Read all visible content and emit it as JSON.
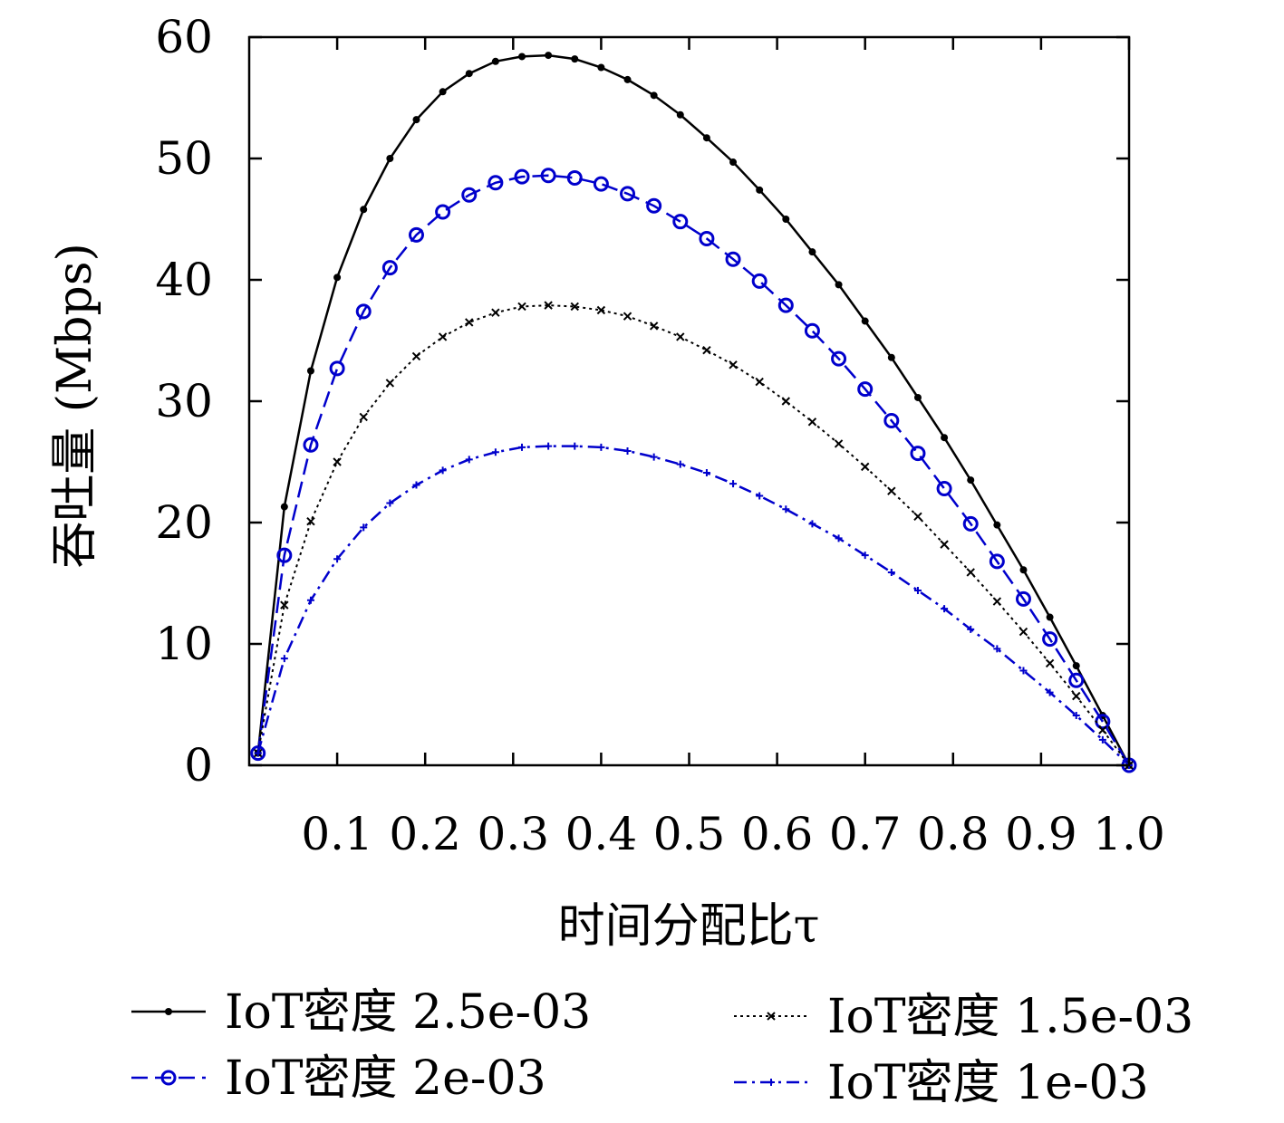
{
  "chart_data": {
    "type": "line",
    "xlabel": "时间分配比τ",
    "ylabel": "吞吐量 (Mbps)",
    "xlim": [
      0,
      1.0
    ],
    "ylim": [
      0,
      60
    ],
    "xticks": [
      "0.1",
      "0.2",
      "0.3",
      "0.4",
      "0.5",
      "0.6",
      "0.7",
      "0.8",
      "0.9",
      "1.0"
    ],
    "yticks": [
      "0",
      "10",
      "20",
      "30",
      "40",
      "50",
      "60"
    ],
    "grid": false,
    "legend_position": "bottom",
    "series": [
      {
        "name": "IoT密度 2.5e-03",
        "color": "#000000",
        "line_style": "solid",
        "marker": "dot",
        "x": [
          0.01,
          0.04,
          0.07,
          0.1,
          0.13,
          0.16,
          0.19,
          0.22,
          0.25,
          0.28,
          0.31,
          0.34,
          0.37,
          0.4,
          0.43,
          0.46,
          0.49,
          0.52,
          0.55,
          0.58,
          0.61,
          0.64,
          0.67,
          0.7,
          0.73,
          0.76,
          0.79,
          0.82,
          0.85,
          0.88,
          0.91,
          0.94,
          0.97,
          1.0
        ],
        "values": [
          1.0,
          21.3,
          32.5,
          40.2,
          45.8,
          50.0,
          53.2,
          55.5,
          57.0,
          58.0,
          58.4,
          58.5,
          58.2,
          57.5,
          56.5,
          55.2,
          53.6,
          51.7,
          49.7,
          47.4,
          45.0,
          42.3,
          39.6,
          36.6,
          33.6,
          30.3,
          27.0,
          23.5,
          19.8,
          16.1,
          12.2,
          8.2,
          4.1,
          0.0
        ]
      },
      {
        "name": "IoT密度 2e-03",
        "color": "#0000cc",
        "line_style": "dashed",
        "marker": "circle",
        "x": [
          0.01,
          0.04,
          0.07,
          0.1,
          0.13,
          0.16,
          0.19,
          0.22,
          0.25,
          0.28,
          0.31,
          0.34,
          0.37,
          0.4,
          0.43,
          0.46,
          0.49,
          0.52,
          0.55,
          0.58,
          0.61,
          0.64,
          0.67,
          0.7,
          0.73,
          0.76,
          0.79,
          0.82,
          0.85,
          0.88,
          0.91,
          0.94,
          0.97,
          1.0
        ],
        "values": [
          1.0,
          17.3,
          26.4,
          32.7,
          37.4,
          41.0,
          43.7,
          45.6,
          47.0,
          48.0,
          48.5,
          48.6,
          48.4,
          47.9,
          47.1,
          46.1,
          44.8,
          43.4,
          41.7,
          39.9,
          37.9,
          35.8,
          33.5,
          31.0,
          28.4,
          25.7,
          22.8,
          19.9,
          16.8,
          13.7,
          10.4,
          7.0,
          3.6,
          0.0
        ]
      },
      {
        "name": "IoT密度 1.5e-03",
        "color": "#000000",
        "line_style": "dotted",
        "marker": "cross",
        "x": [
          0.01,
          0.04,
          0.07,
          0.1,
          0.13,
          0.16,
          0.19,
          0.22,
          0.25,
          0.28,
          0.31,
          0.34,
          0.37,
          0.4,
          0.43,
          0.46,
          0.49,
          0.52,
          0.55,
          0.58,
          0.61,
          0.64,
          0.67,
          0.7,
          0.73,
          0.76,
          0.79,
          0.82,
          0.85,
          0.88,
          0.91,
          0.94,
          0.97,
          1.0
        ],
        "values": [
          1.0,
          13.2,
          20.1,
          25.0,
          28.7,
          31.5,
          33.7,
          35.3,
          36.5,
          37.3,
          37.8,
          37.9,
          37.8,
          37.5,
          37.0,
          36.2,
          35.3,
          34.2,
          33.0,
          31.6,
          30.0,
          28.3,
          26.5,
          24.6,
          22.6,
          20.5,
          18.2,
          15.9,
          13.5,
          11.0,
          8.4,
          5.7,
          2.9,
          0.0
        ]
      },
      {
        "name": "IoT密度 1e-03",
        "color": "#0000cc",
        "line_style": "dashdot",
        "marker": "plus",
        "x": [
          0.01,
          0.04,
          0.07,
          0.1,
          0.13,
          0.16,
          0.19,
          0.22,
          0.25,
          0.28,
          0.31,
          0.34,
          0.37,
          0.4,
          0.43,
          0.46,
          0.49,
          0.52,
          0.55,
          0.58,
          0.61,
          0.64,
          0.67,
          0.7,
          0.73,
          0.76,
          0.79,
          0.82,
          0.85,
          0.88,
          0.91,
          0.94,
          0.97,
          1.0
        ],
        "values": [
          1.0,
          8.8,
          13.6,
          17.0,
          19.6,
          21.6,
          23.1,
          24.3,
          25.2,
          25.8,
          26.2,
          26.3,
          26.3,
          26.2,
          25.9,
          25.4,
          24.8,
          24.1,
          23.2,
          22.2,
          21.1,
          19.9,
          18.7,
          17.3,
          15.9,
          14.4,
          12.9,
          11.2,
          9.6,
          7.8,
          6.0,
          4.1,
          2.1,
          0.0
        ]
      }
    ]
  }
}
